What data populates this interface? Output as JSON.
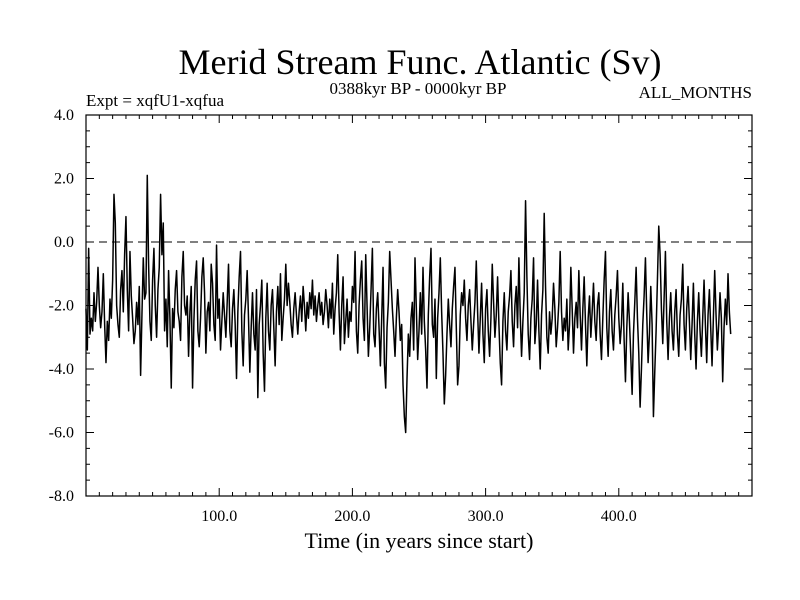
{
  "chart_data": {
    "type": "line",
    "title": "Merid Stream Func. Atlantic (Sv)",
    "subtitle_left": "Expt = xqfU1-xqfua",
    "subtitle_center": "0388kyr BP - 0000kyr BP",
    "subtitle_right": "ALL_MONTHS",
    "xlabel": "Time (in years since start)",
    "ylabel": "",
    "xlim": [
      0,
      500
    ],
    "ylim": [
      -8.0,
      4.0
    ],
    "x_ticks": [
      100,
      200,
      300,
      400
    ],
    "x_tick_labels": [
      "100.0",
      "200.0",
      "300.0",
      "400.0"
    ],
    "y_ticks": [
      -8,
      -6,
      -4,
      -2,
      0,
      2,
      4
    ],
    "y_tick_labels": [
      "-8.0",
      "-6.0",
      "-4.0",
      "-2.0",
      "0.0",
      "2.0",
      "4.0"
    ],
    "reference_line": {
      "y": 0.0,
      "style": "dashed"
    },
    "series": [
      {
        "name": "Merid Stream Func. Atlantic",
        "x_start": 0,
        "x_step": 1,
        "values": [
          -2.1,
          -3.4,
          -0.2,
          -2.9,
          -2.4,
          -2.8,
          -1.6,
          -2.5,
          -1.9,
          -0.8,
          -2.0,
          -2.7,
          -2.2,
          -1.0,
          -2.6,
          -3.8,
          -2.5,
          -3.1,
          -1.8,
          -2.4,
          -1.2,
          1.5,
          0.6,
          -2.0,
          -2.6,
          -3.0,
          -1.5,
          -0.9,
          -2.2,
          -0.4,
          0.8,
          -1.5,
          -2.8,
          -0.3,
          -1.7,
          -2.4,
          -3.2,
          -2.8,
          -1.9,
          -2.6,
          -1.4,
          -4.2,
          -2.3,
          -0.5,
          -1.8,
          -1.6,
          2.1,
          -0.7,
          -2.5,
          -3.1,
          -1.2,
          -0.2,
          -2.0,
          -3.0,
          -1.5,
          -0.8,
          1.5,
          -0.4,
          0.6,
          -2.8,
          -1.8,
          -3.3,
          -0.9,
          -2.4,
          -4.6,
          -2.1,
          -2.7,
          -1.5,
          -0.9,
          -2.2,
          -2.5,
          -3.1,
          -1.1,
          -0.3,
          -2.0,
          -2.3,
          -1.7,
          -3.6,
          -2.2,
          -1.4,
          -4.6,
          -2.5,
          -1.2,
          -0.6,
          -2.8,
          -3.3,
          -2.4,
          -1.1,
          -0.5,
          -1.6,
          -3.5,
          -2.2,
          -1.9,
          -2.8,
          -0.7,
          -1.3,
          -2.6,
          -3.1,
          -0.1,
          -2.4,
          -1.8,
          -3.4,
          -2.5,
          -1.6,
          -2.3,
          -3.0,
          -1.9,
          -0.7,
          -2.8,
          -3.3,
          -2.1,
          -1.5,
          -2.6,
          -4.3,
          -2.2,
          -1.1,
          -0.3,
          -2.8,
          -3.9,
          -2.3,
          -1.8,
          -0.9,
          -2.4,
          -4.1,
          -2.7,
          -1.6,
          -2.9,
          -3.4,
          -1.5,
          -4.9,
          -2.6,
          -2.0,
          -1.2,
          -3.5,
          -4.7,
          -2.4,
          -1.3,
          -2.8,
          -3.4,
          -2.0,
          -1.5,
          -2.7,
          -3.9,
          -2.2,
          -1.4,
          -2.6,
          -1.0,
          -3.1,
          -2.4,
          -1.8,
          -0.7,
          -2.0,
          -1.3,
          -1.9,
          -2.6,
          -3.0,
          -2.1,
          -1.6,
          -2.3,
          -2.9,
          -2.2,
          -1.7,
          -2.5,
          -1.4,
          -2.0,
          -2.8,
          -1.9,
          -2.4,
          -1.6,
          -2.1,
          -1.2,
          -2.3,
          -1.7,
          -2.5,
          -2.0,
          -1.6,
          -2.3,
          -1.9,
          -2.6,
          -2.2,
          -1.5,
          -2.0,
          -2.7,
          -1.8,
          -2.4,
          -1.3,
          -2.9,
          -2.1,
          -1.6,
          -0.4,
          -2.2,
          -3.4,
          -2.0,
          -1.1,
          -3.2,
          -2.5,
          -1.8,
          -3.0,
          -2.2,
          -2.5,
          -1.4,
          -1.9,
          -0.3,
          -2.8,
          -3.5,
          -2.0,
          -1.2,
          -0.6,
          -2.4,
          -3.1,
          -0.4,
          -2.0,
          -3.6,
          -2.7,
          -1.5,
          -0.2,
          -2.9,
          -3.3,
          -2.1,
          -1.6,
          -2.7,
          -3.9,
          -2.4,
          -0.8,
          -3.8,
          -4.6,
          -2.7,
          -1.9,
          -0.3,
          -1.2,
          -2.1,
          -2.8,
          -3.6,
          -2.4,
          -1.5,
          -2.2,
          -3.1,
          -2.6,
          -4.5,
          -5.5,
          -6.0,
          -4.3,
          -2.9,
          -3.6,
          -2.4,
          -1.9,
          -3.4,
          -0.5,
          -2.1,
          -3.7,
          -2.8,
          -1.6,
          -2.9,
          -0.8,
          -2.5,
          -3.4,
          -4.6,
          -2.3,
          -1.1,
          -0.2,
          -2.6,
          -3.0,
          -1.8,
          -4.3,
          -2.4,
          -1.6,
          -0.5,
          -2.2,
          -3.5,
          -5.1,
          -4.2,
          -2.9,
          -1.8,
          -2.6,
          -3.3,
          -2.1,
          -1.4,
          -0.8,
          -2.7,
          -4.5,
          -3.9,
          -2.3,
          -1.6,
          -2.0,
          -1.2,
          -2.4,
          -3.1,
          -2.0,
          -1.5,
          -2.5,
          -3.4,
          -2.6,
          -1.9,
          -0.6,
          -2.2,
          -3.5,
          -2.4,
          -1.3,
          -2.9,
          -3.8,
          -2.1,
          -1.5,
          -2.8,
          -3.6,
          -2.4,
          -0.7,
          -1.9,
          -3.0,
          -2.3,
          -1.1,
          -2.6,
          -3.8,
          -4.5,
          -2.5,
          -1.6,
          -2.8,
          -3.4,
          -2.2,
          -1.7,
          -0.9,
          -2.5,
          -3.3,
          -2.0,
          -1.4,
          -2.7,
          -0.5,
          -2.3,
          -3.6,
          -2.5,
          -1.6,
          1.3,
          -1.1,
          -2.9,
          -3.7,
          -2.4,
          -1.8,
          -0.5,
          -3.2,
          -2.6,
          -1.2,
          -2.8,
          -4.0,
          -2.3,
          -1.5,
          0.9,
          -1.4,
          -3.0,
          -3.5,
          -2.2,
          -2.9,
          -2.4,
          -1.3,
          -2.1,
          -3.3,
          -2.7,
          -1.9,
          -0.3,
          -2.2,
          -3.1,
          -2.4,
          -2.8,
          -1.8,
          -3.4,
          -2.6,
          -0.8,
          -2.1,
          -3.5,
          -2.4,
          -1.9,
          -2.7,
          -0.9,
          -2.3,
          -3.4,
          -2.1,
          -1.1,
          -2.6,
          -3.9,
          -2.4,
          -1.7,
          -3.0,
          -2.2,
          -1.3,
          -2.5,
          -3.1,
          -2.0,
          -1.6,
          -2.9,
          -3.7,
          -2.4,
          -1.2,
          -0.3,
          -2.7,
          -3.6,
          -2.2,
          -1.5,
          -2.8,
          -3.4,
          -2.3,
          -1.7,
          -0.9,
          -2.4,
          -3.2,
          -2.6,
          -1.3,
          -3.1,
          -4.4,
          -2.7,
          -1.6,
          -2.5,
          -3.6,
          -4.8,
          -2.9,
          -1.9,
          -0.8,
          -2.4,
          -3.5,
          -5.2,
          -4.0,
          -2.6,
          -1.7,
          -0.5,
          -2.3,
          -3.8,
          -2.9,
          -1.4,
          -2.6,
          -5.5,
          -4.1,
          -2.8,
          -1.2,
          0.5,
          -0.4,
          -2.1,
          -3.2,
          -1.8,
          -0.3,
          -2.5,
          -3.7,
          -2.4,
          -1.6,
          -2.8,
          -3.4,
          -2.2,
          -1.5,
          -2.9,
          -3.6,
          -2.3,
          -1.8,
          -0.7,
          -2.6,
          -3.4,
          -2.1,
          -1.4,
          -2.5,
          -3.7,
          -2.6,
          -1.3,
          -2.9,
          -4.0,
          -2.5,
          -1.6,
          -2.8,
          -3.6,
          -2.4,
          -1.2,
          -2.6,
          -3.8,
          -2.3,
          -1.5,
          -2.7,
          -3.9,
          -2.4,
          -0.9,
          -2.3,
          -3.4,
          -2.6,
          -1.6,
          -2.4,
          -4.4,
          -2.7,
          -1.8,
          -2.6,
          -1.0,
          -2.2,
          -2.9
        ]
      }
    ]
  }
}
